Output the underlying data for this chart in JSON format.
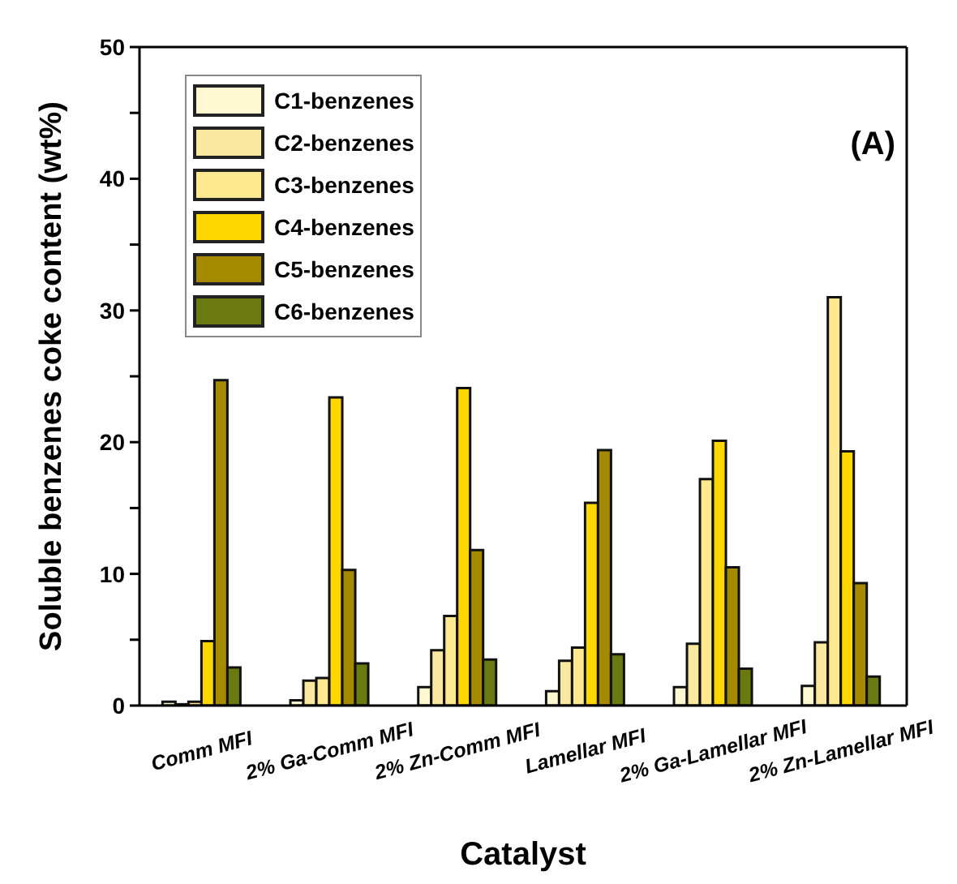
{
  "chart_data": {
    "type": "bar",
    "xlabel": "Catalyst",
    "ylabel": "Soluble benzenes coke content (wt%)",
    "annotations": [
      "(A)"
    ],
    "categories": [
      "Comm MFI",
      "2% Ga-Comm MFI",
      "2% Zn-Comm MFI",
      "Lamellar MFI",
      "2% Ga-Lamellar MFI",
      "2% Zn-Lamellar MFI"
    ],
    "series": [
      {
        "name": "C1-benzenes",
        "color": "#fff8d0",
        "values": [
          0.3,
          0.4,
          1.4,
          1.1,
          1.4,
          1.5
        ]
      },
      {
        "name": "C2-benzenes",
        "color": "#fbe8a0",
        "values": [
          0.1,
          1.9,
          4.2,
          3.4,
          4.7,
          4.8
        ]
      },
      {
        "name": "C3-benzenes",
        "color": "#ffe990",
        "values": [
          0.3,
          2.1,
          6.8,
          4.4,
          17.2,
          31
        ]
      },
      {
        "name": "C4-benzenes",
        "color": "#ffd700",
        "values": [
          4.9,
          23.4,
          24.1,
          15.4,
          20.1,
          19.3
        ]
      },
      {
        "name": "C5-benzenes",
        "color": "#a58a00",
        "values": [
          24.7,
          10.3,
          11.8,
          19.4,
          10.5,
          9.3
        ]
      },
      {
        "name": "C6-benzenes",
        "color": "#6b7a10",
        "values": [
          2.9,
          3.2,
          3.5,
          3.9,
          2.8,
          2.2
        ]
      }
    ],
    "ylim": [
      0,
      50
    ],
    "yticks": [
      0,
      {
        "value": 5,
        "label": null
      },
      10,
      {
        "value": 15,
        "label": null
      },
      20,
      {
        "value": 25,
        "label": null
      },
      30,
      {
        "value": 35,
        "label": null
      },
      40,
      {
        "value": 45,
        "label": null
      },
      50
    ],
    "legend": "top left",
    "grid": false
  }
}
